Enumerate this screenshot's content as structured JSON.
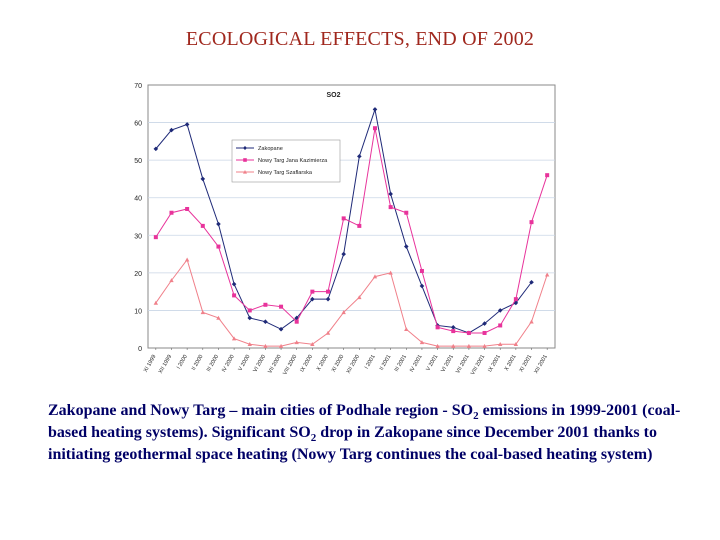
{
  "slide": {
    "title": "ECOLOGICAL EFFECTS, END OF 2002",
    "caption_1": "Zakopane and Nowy Targ – main cities of Podhale region - SO",
    "caption_sub_1": "2",
    "caption_2": " emissions in 1999-2001 (coal-based heating systems). Significant SO",
    "caption_sub_2": "2",
    "caption_3": " drop in Zakopane since December 2001 thanks to initiating geothermal space heating (Nowy Targ continues the coal-based heating system)"
  },
  "chart_data": {
    "type": "line",
    "title": "SO2",
    "xlabel": "",
    "ylabel": "",
    "ylim": [
      0,
      70
    ],
    "yticks": [
      0,
      10,
      20,
      30,
      40,
      50,
      60,
      70
    ],
    "grid": true,
    "legend_position": "center",
    "categories": [
      "XI 1999",
      "XII 1999",
      "I 2000",
      "II 2000",
      "III 2000",
      "IV 2000",
      "V 2000",
      "VI 2000",
      "VII 2000",
      "VIII 2000",
      "IX 2000",
      "X 2000",
      "XI 2000",
      "XII 2000",
      "I 2001",
      "II 2001",
      "III 2001",
      "IV 2001",
      "V 2001",
      "VI 2001",
      "VII 2001",
      "VIII 2001",
      "IX 2001",
      "X 2001",
      "XI 2001",
      "XII 2001"
    ],
    "series": [
      {
        "name": "Zakopane",
        "color": "#1f2a78",
        "marker": "diamond",
        "values": [
          53,
          58,
          59.5,
          45,
          33,
          17,
          8,
          7,
          5,
          8,
          13,
          13,
          25,
          51,
          63.5,
          41,
          27,
          16.5,
          6,
          5.5,
          4,
          6.5,
          10,
          12,
          17.5,
          null
        ]
      },
      {
        "name": "Nowy Targ Jana Kazimierza",
        "color": "#e8339b",
        "marker": "square",
        "values": [
          29.5,
          36,
          37,
          32.5,
          27,
          14,
          10,
          11.5,
          11,
          7,
          15,
          15,
          34.5,
          32.5,
          58.5,
          37.5,
          36,
          20.5,
          5.5,
          4.5,
          4,
          4,
          6,
          13,
          33.5,
          46
        ]
      },
      {
        "name": "Nowy Targ Szaflarska",
        "color": "#f0808a",
        "marker": "triangle",
        "values": [
          12,
          18,
          23.5,
          9.5,
          8,
          2.5,
          1,
          0.5,
          0.5,
          1.5,
          1,
          4,
          9.5,
          13.5,
          19,
          20,
          5,
          1.5,
          0.5,
          0.5,
          0.5,
          0.5,
          1,
          1,
          7,
          19.5
        ]
      }
    ]
  }
}
